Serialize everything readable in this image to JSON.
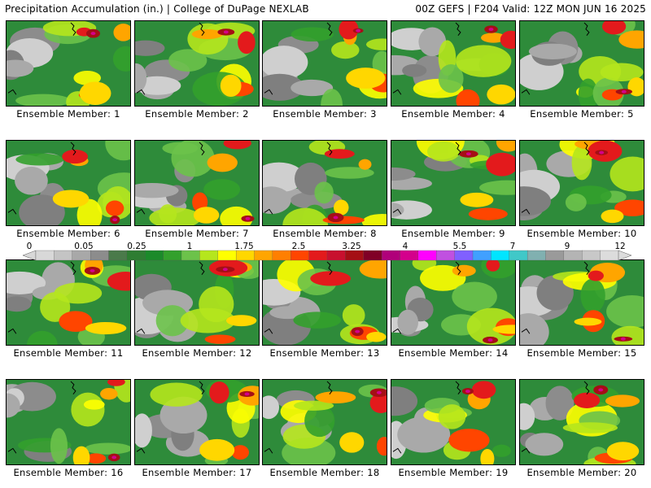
{
  "header": {
    "title_left": "Precipitation Accumulation (in.) | College of DuPage NEXLAB",
    "title_right": "00Z GEFS | F204 Valid: 12Z MON JUN 16 2025"
  },
  "colorbar": {
    "tick_labels": [
      "0",
      "0.05",
      "0.25",
      "1",
      "1.75",
      "2.5",
      "3.25",
      "4",
      "5.5",
      "7",
      "9",
      "12"
    ],
    "colors": [
      "#d8d8d8",
      "#c4c4c4",
      "#a8a8a8",
      "#8c8c8c",
      "#4a7a4a",
      "#2e7d32",
      "#1b8a2a",
      "#33a02c",
      "#6cc24a",
      "#b5e61d",
      "#ffff00",
      "#ffd700",
      "#ffa500",
      "#ff7f00",
      "#ff4500",
      "#e31a1c",
      "#c8102e",
      "#a50f15",
      "#800026",
      "#b0007a",
      "#d4008c",
      "#ff00ff",
      "#c050e0",
      "#8060ff",
      "#40a0ff",
      "#00e5ff",
      "#40c8c8",
      "#80b0b0",
      "#9a9a9a",
      "#b4b4b4",
      "#c8c8c8",
      "#dcdcdc"
    ]
  },
  "members": [
    {
      "label": "Ensemble Member: 1"
    },
    {
      "label": "Ensemble Member: 2"
    },
    {
      "label": "Ensemble Member: 3"
    },
    {
      "label": "Ensemble Member: 4"
    },
    {
      "label": "Ensemble Member: 5"
    },
    {
      "label": "Ensemble Member: 6"
    },
    {
      "label": "Ensemble Member: 7"
    },
    {
      "label": "Ensemble Member: 8"
    },
    {
      "label": "Ensemble Member: 9"
    },
    {
      "label": "Ensemble Member: 10"
    },
    {
      "label": "Ensemble Member: 11"
    },
    {
      "label": "Ensemble Member: 12"
    },
    {
      "label": "Ensemble Member: 13"
    },
    {
      "label": "Ensemble Member: 14"
    },
    {
      "label": "Ensemble Member: 15"
    },
    {
      "label": "Ensemble Member: 16"
    },
    {
      "label": "Ensemble Member: 17"
    },
    {
      "label": "Ensemble Member: 18"
    },
    {
      "label": "Ensemble Member: 19"
    },
    {
      "label": "Ensemble Member: 20"
    }
  ]
}
